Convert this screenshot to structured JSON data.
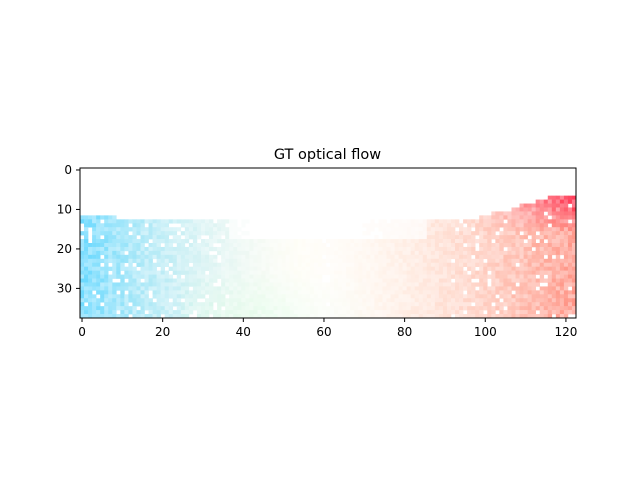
{
  "chart_data": {
    "type": "heatmap",
    "title": "GT optical flow",
    "xlabel": "",
    "ylabel": "",
    "image_width": 123,
    "image_height": 38,
    "xlim": [
      -0.5,
      122.5
    ],
    "ylim": [
      37.5,
      -0.5
    ],
    "x_ticks": [
      0,
      20,
      40,
      60,
      80,
      100,
      120
    ],
    "y_ticks": [
      0,
      10,
      20,
      30
    ],
    "grid": false,
    "encoding": "flow color wheel (hue = direction, saturation = magnitude); rows 0-6 blank (no ground truth)",
    "flow_colors": {
      "left": "#5fd6ff",
      "lower_left_center": "#b9f7c8",
      "center": "#fff7d8",
      "right": "#ff8a7a",
      "upper_right": "#ff1f3f",
      "invalid": "#ffffff"
    },
    "regions": [
      {
        "name": "left",
        "x_range": [
          0,
          35
        ],
        "y_range": [
          12,
          37
        ],
        "color": "#5fd6ff"
      },
      {
        "name": "lower-center",
        "x_range": [
          30,
          85
        ],
        "y_range": [
          26,
          37
        ],
        "color": "#b9f7c8"
      },
      {
        "name": "center",
        "x_range": [
          35,
          85
        ],
        "y_range": [
          14,
          37
        ],
        "color": "#fff7d8"
      },
      {
        "name": "right",
        "x_range": [
          85,
          122
        ],
        "y_range": [
          14,
          37
        ],
        "color": "#ff8a7a"
      },
      {
        "name": "upper-right",
        "x_range": [
          95,
          122
        ],
        "y_range": [
          7,
          14
        ],
        "color": "#ff1f3f"
      }
    ]
  }
}
